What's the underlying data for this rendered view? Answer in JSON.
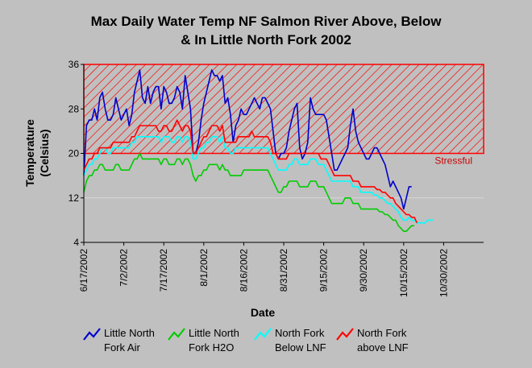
{
  "chart_data": {
    "type": "line",
    "title_lines": [
      "Max Daily Water Temp NF Salmon River Above, Below",
      "& In Little North Fork 2002"
    ],
    "xlabel": "Date",
    "ylabel_lines": [
      "Temperature",
      "(Celsius)"
    ],
    "ylim": [
      4,
      36
    ],
    "y_ticks": [
      4,
      12,
      20,
      28,
      36
    ],
    "x_tick_labels": [
      "6/17/2002",
      "7/2/2002",
      "7/17/2002",
      "8/1/2002",
      "8/16/2002",
      "8/31/2002",
      "9/15/2002",
      "9/30/2002",
      "10/15/2002",
      "10/30/2002"
    ],
    "x_range_days": [
      0,
      150
    ],
    "x_tick_step_days": 15,
    "threshold": {
      "label": "Stressful",
      "y_from": 20,
      "y_to": 36,
      "color": "#ff0000"
    },
    "colors": {
      "background": "#c0c0c0",
      "plot": "#c0c0c0",
      "grid": "#d8d8d8"
    },
    "series": [
      {
        "name": "Little North Fork Air",
        "legend_lines": [
          "Little North",
          "Fork Air"
        ],
        "color": "#0000cc",
        "x_days_start": 0,
        "values": [
          16,
          25,
          26,
          26,
          28,
          26,
          30,
          31,
          28,
          26,
          26,
          27,
          30,
          28,
          26,
          27,
          28,
          25,
          27,
          31,
          33,
          35,
          30,
          29,
          32,
          29,
          31,
          32,
          32,
          28,
          32,
          31,
          29,
          29,
          30,
          32,
          31,
          28,
          34,
          31,
          28,
          20,
          20,
          22,
          26,
          29,
          31,
          33,
          35,
          34,
          34,
          33,
          34,
          29,
          30,
          27,
          22,
          25,
          26,
          28,
          27,
          27,
          28,
          29,
          30,
          29,
          28,
          30,
          30,
          29,
          28,
          24,
          20,
          19,
          20,
          20,
          21,
          24,
          26,
          28,
          29,
          21,
          19,
          20,
          22,
          30,
          28,
          27,
          27,
          27,
          27,
          26,
          23,
          20,
          17,
          17,
          18,
          19,
          20,
          21,
          25,
          28,
          24,
          22,
          21,
          20,
          19,
          19,
          20,
          21,
          21,
          20,
          19,
          18,
          16,
          14,
          15,
          14,
          13,
          12,
          10,
          12,
          14,
          14
        ]
      },
      {
        "name": "Little North Fork H2O",
        "legend_lines": [
          "Little North",
          "Fork H2O"
        ],
        "color": "#00cc00",
        "x_days_start": 0,
        "values": [
          13,
          15,
          16,
          16,
          17,
          17,
          18,
          18,
          17,
          17,
          17,
          17,
          18,
          18,
          17,
          17,
          17,
          17,
          18,
          19,
          19,
          20,
          19,
          19,
          19,
          19,
          19,
          19,
          19,
          18,
          19,
          19,
          18,
          18,
          18,
          19,
          19,
          18,
          19,
          19,
          18,
          16,
          15,
          16,
          16,
          17,
          17,
          18,
          18,
          18,
          18,
          17,
          18,
          17,
          17,
          16,
          16,
          16,
          16,
          16,
          17,
          17,
          17,
          17,
          17,
          17,
          17,
          17,
          17,
          17,
          16,
          15,
          14,
          13,
          13,
          14,
          14,
          15,
          15,
          15,
          15,
          14,
          14,
          14,
          14,
          15,
          15,
          15,
          14,
          14,
          14,
          13,
          12,
          11,
          11,
          11,
          11,
          11,
          12,
          12,
          12,
          11,
          11,
          11,
          10,
          10,
          10,
          10,
          10,
          10,
          10,
          9.5,
          9.5,
          9,
          9,
          8.5,
          8,
          8,
          7,
          6.5,
          6,
          6,
          6.5,
          7,
          7
        ]
      },
      {
        "name": "North Fork Below LNF",
        "legend_lines": [
          "North Fork",
          "Below LNF"
        ],
        "color": "#00ffff",
        "x_days_start": 0,
        "values": [
          16,
          17,
          18,
          18,
          19,
          19,
          20,
          21,
          21,
          20,
          20,
          21,
          21,
          21,
          21,
          21,
          21,
          21,
          22,
          22,
          23,
          23,
          23,
          23,
          23,
          23,
          23,
          23,
          23,
          22,
          23,
          23,
          23,
          22,
          22,
          23,
          23,
          22,
          23,
          23,
          22,
          19,
          19,
          20,
          21,
          21,
          22,
          22,
          23,
          23,
          23,
          22,
          23,
          21,
          21,
          20,
          20,
          21,
          21,
          21,
          21,
          21,
          21,
          21,
          21,
          21,
          21,
          21,
          21,
          21,
          20,
          19,
          18,
          17,
          17,
          17,
          17,
          18,
          18,
          19,
          19,
          18,
          18,
          18,
          18,
          19,
          19,
          19,
          18,
          18,
          18,
          17,
          16,
          15,
          15,
          15,
          15,
          15,
          15,
          15,
          15,
          14,
          14,
          14,
          13,
          13,
          13,
          13,
          13,
          12.5,
          12.5,
          12,
          12,
          11.5,
          11,
          11,
          10.5,
          10,
          9.5,
          8.5,
          8,
          8,
          8.5,
          8,
          8,
          7.5,
          7.5,
          7.5,
          7.5,
          8,
          8,
          8
        ]
      },
      {
        "name": "North Fork above LNF",
        "legend_lines": [
          "North Fork",
          "above LNF"
        ],
        "color": "#ff0000",
        "x_days_start": 0,
        "values": [
          17,
          18,
          19,
          19,
          20,
          20,
          21,
          21,
          21,
          21,
          21,
          22,
          22,
          22,
          22,
          22,
          22,
          22,
          23,
          23,
          24,
          25,
          25,
          25,
          25,
          25,
          25,
          25,
          24,
          24,
          25,
          25,
          24,
          24,
          25,
          26,
          25,
          24,
          25,
          25,
          24,
          20,
          20,
          21,
          22,
          23,
          23,
          24,
          25,
          25,
          25,
          24,
          25,
          22,
          22,
          22,
          22,
          22,
          23,
          23,
          23,
          23,
          23,
          24,
          23,
          23,
          23,
          23,
          23,
          23,
          22,
          20,
          20,
          19,
          19,
          19,
          19,
          20,
          20,
          20,
          20,
          20,
          20,
          20,
          20,
          20,
          20,
          20,
          20,
          19,
          19,
          19,
          18,
          17,
          16,
          16,
          16,
          16,
          16,
          16,
          16,
          15,
          15,
          15,
          14,
          14,
          14,
          14,
          14,
          14,
          13.5,
          13.5,
          13,
          13,
          12.5,
          12,
          12,
          11,
          10.5,
          10,
          9.5,
          9,
          9,
          8.5,
          8.5,
          7.5
        ]
      }
    ],
    "legend_position": "bottom"
  }
}
